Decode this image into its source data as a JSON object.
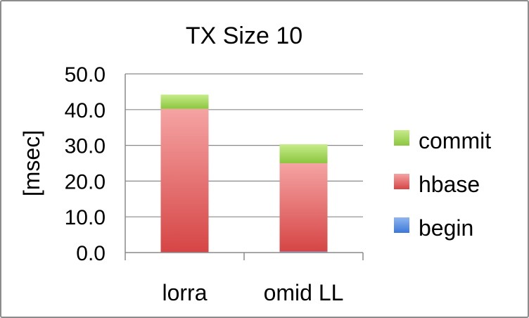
{
  "chart_data": {
    "type": "bar",
    "stacked": true,
    "title": "TX Size 10",
    "xlabel": "",
    "ylabel": "[msec]",
    "ylim": [
      0,
      50
    ],
    "yticks": [
      "0.0",
      "10.0",
      "20.0",
      "30.0",
      "40.0",
      "50.0"
    ],
    "categories": [
      "lorra",
      "omid LL"
    ],
    "series": [
      {
        "name": "begin",
        "values": [
          0.0,
          0.3
        ],
        "color": "#4a86e8"
      },
      {
        "name": "hbase",
        "values": [
          40.2,
          24.7
        ],
        "color": "#e57373"
      },
      {
        "name": "commit",
        "values": [
          4.0,
          5.3
        ],
        "color": "#9bd250"
      }
    ],
    "legend": {
      "position": "right",
      "order": [
        "commit",
        "hbase",
        "begin"
      ]
    },
    "grid": true
  }
}
